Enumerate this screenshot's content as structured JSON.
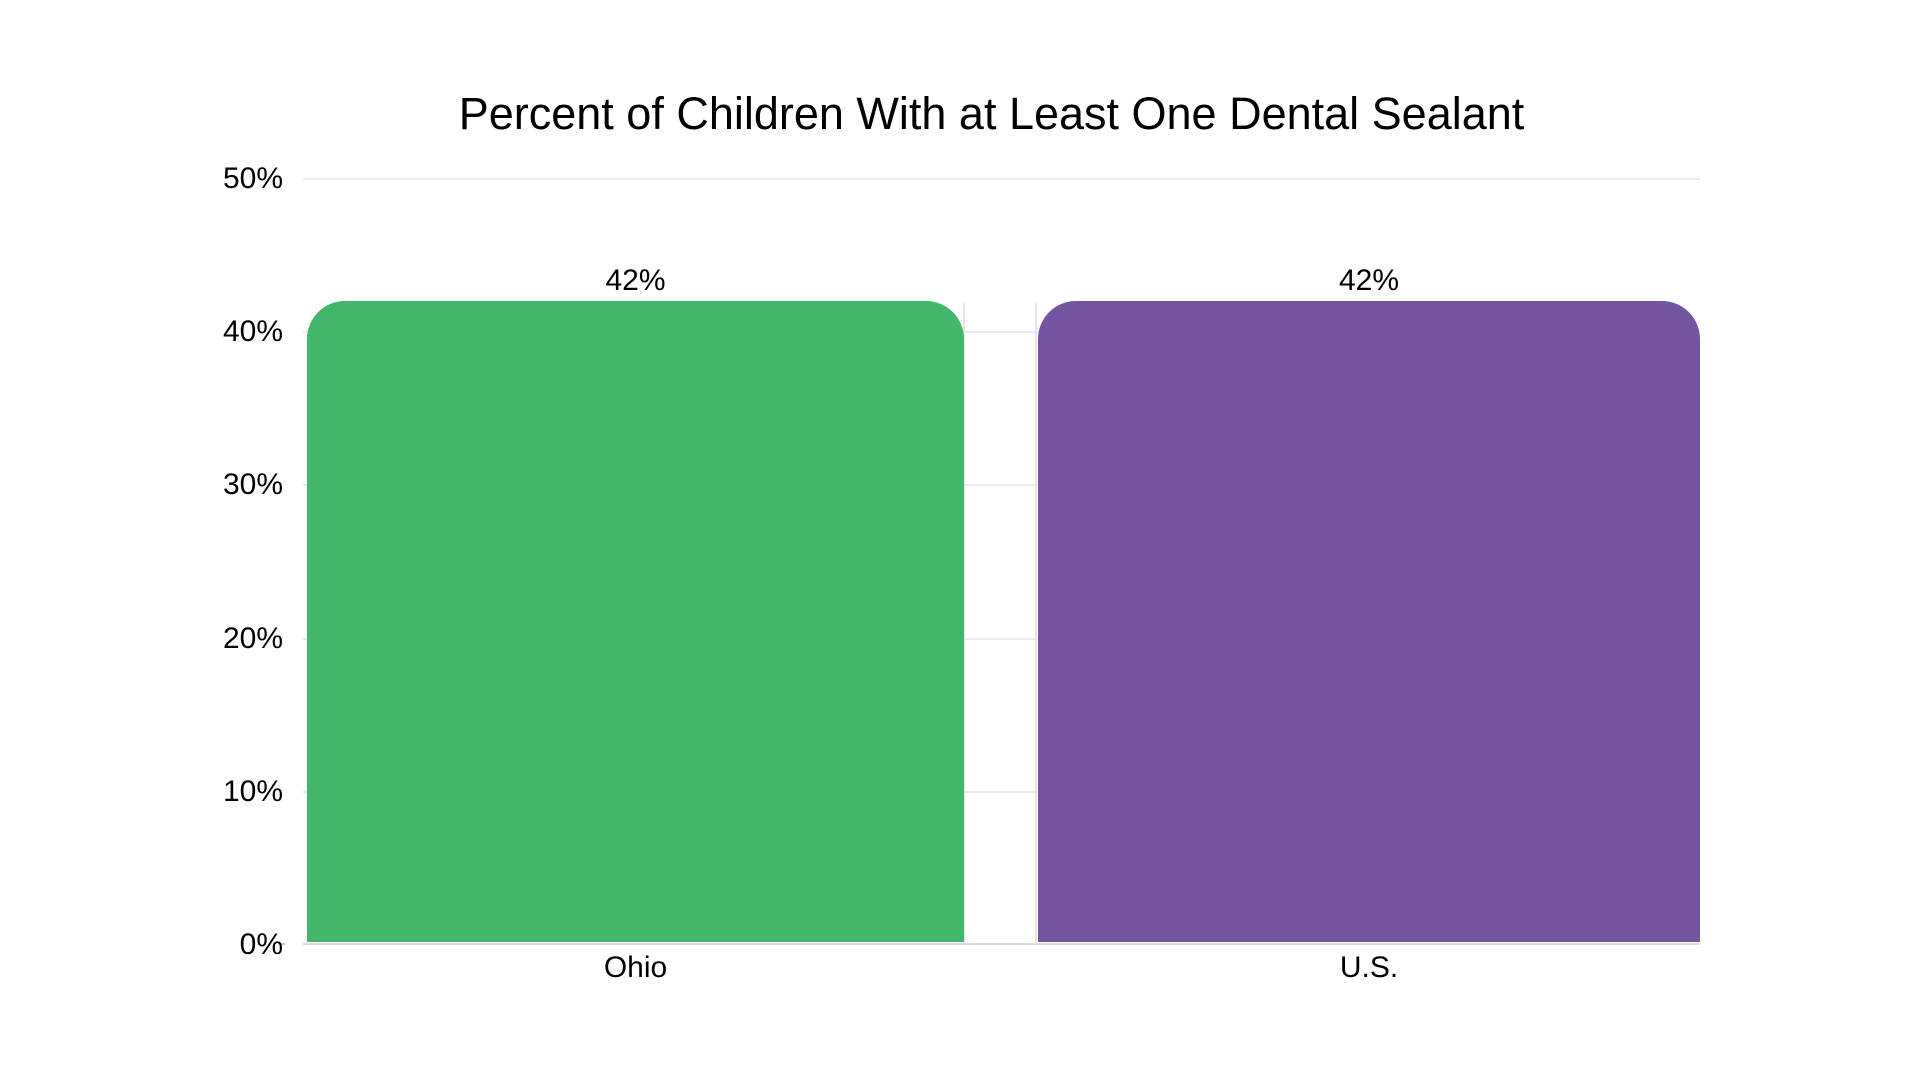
{
  "chart_data": {
    "type": "bar",
    "title": "Percent of Children With at Least One Dental Sealant",
    "categories": [
      "Ohio",
      "U.S."
    ],
    "values": [
      42,
      42
    ],
    "data_labels": [
      "42%",
      "42%"
    ],
    "ytick_labels": [
      "0%",
      "10%",
      "20%",
      "30%",
      "40%",
      "50%"
    ],
    "ylim": [
      0,
      50
    ],
    "ytick_step": 10,
    "xlabel": "",
    "ylabel": "",
    "grid": "horizontal",
    "legend_position": "none",
    "colors": {
      "bar_ohio": "#42b76a",
      "bar_us": "#74559f",
      "gridline": "#ebebeb",
      "axis_baseline": "#dedede",
      "text": "#000000",
      "background": "#ffffff"
    }
  }
}
